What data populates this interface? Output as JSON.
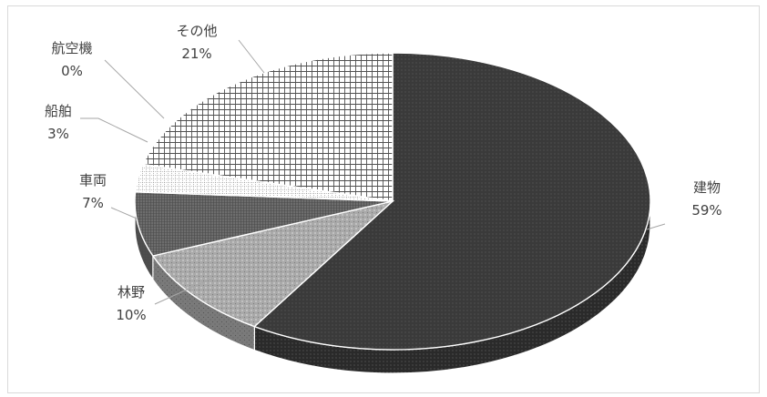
{
  "chart_data": {
    "type": "pie",
    "title": "",
    "three_d": true,
    "label_format": "category + percent",
    "slices": [
      {
        "label": "建物",
        "value": 59,
        "percent_label": "59%",
        "color": "#3a3a3a",
        "fill_pattern": "fine-dots"
      },
      {
        "label": "林野",
        "value": 10,
        "percent_label": "10%",
        "color": "#a9a9a9",
        "fill_pattern": "sparse-dots"
      },
      {
        "label": "車両",
        "value": 7,
        "percent_label": "7%",
        "color": "#6d6d6d",
        "fill_pattern": "dense-grid"
      },
      {
        "label": "船舶",
        "value": 3,
        "percent_label": "3%",
        "color": "#ffffff",
        "fill_pattern": "dotted-grid"
      },
      {
        "label": "航空機",
        "value": 0,
        "percent_label": "0%",
        "color": "#cfcfcf",
        "fill_pattern": "none"
      },
      {
        "label": "その他",
        "value": 21,
        "percent_label": "21%",
        "color": "#ffffff",
        "fill_pattern": "crosshatch"
      }
    ]
  }
}
